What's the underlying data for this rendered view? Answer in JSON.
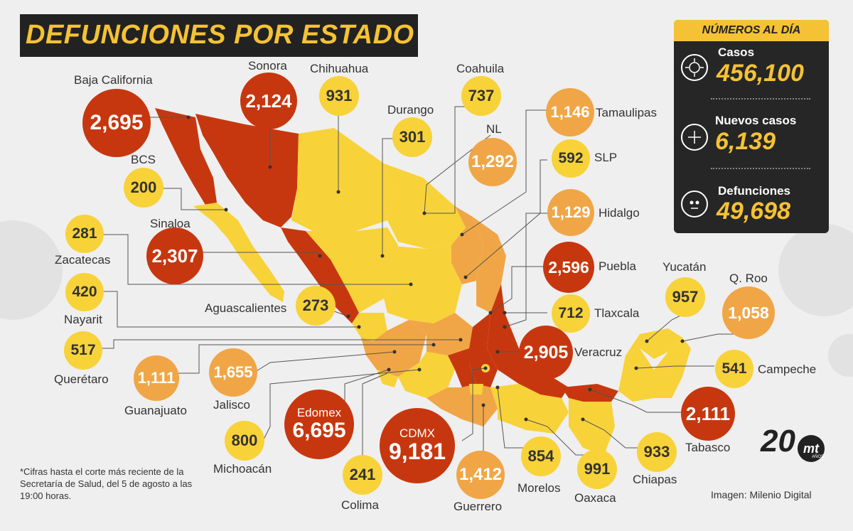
{
  "title": "DEFUNCIONES POR ESTADO",
  "panel": {
    "header": "NÚMEROS AL DÍA",
    "stats": [
      {
        "label": "Casos",
        "value": "456,100",
        "icon": "virus-icon"
      },
      {
        "label": "Nuevos casos",
        "value": "6,139",
        "icon": "plus-icon"
      },
      {
        "label": "Defunciones",
        "value": "49,698",
        "icon": "skull-icon"
      }
    ]
  },
  "states": [
    {
      "name": "Baja California",
      "value": "2,695",
      "level": "dark"
    },
    {
      "name": "Sonora",
      "value": "2,124",
      "level": "dark"
    },
    {
      "name": "Chihuahua",
      "value": "931",
      "level": "yellow"
    },
    {
      "name": "Durango",
      "value": "301",
      "level": "yellow"
    },
    {
      "name": "Coahuila",
      "value": "737",
      "level": "yellow"
    },
    {
      "name": "NL",
      "value": "1,292",
      "level": "mid"
    },
    {
      "name": "Tamaulipas",
      "value": "1,146",
      "level": "mid"
    },
    {
      "name": "SLP",
      "value": "592",
      "level": "yellow"
    },
    {
      "name": "Hidalgo",
      "value": "1,129",
      "level": "mid"
    },
    {
      "name": "BCS",
      "value": "200",
      "level": "yellow"
    },
    {
      "name": "Sinaloa",
      "value": "2,307",
      "level": "dark"
    },
    {
      "name": "Zacatecas",
      "value": "281",
      "level": "yellow"
    },
    {
      "name": "Nayarit",
      "value": "420",
      "level": "yellow"
    },
    {
      "name": "Aguascalientes",
      "value": "273",
      "level": "yellow"
    },
    {
      "name": "Querétaro",
      "value": "517",
      "level": "yellow"
    },
    {
      "name": "Guanajuato",
      "value": "1,111",
      "level": "mid"
    },
    {
      "name": "Jalisco",
      "value": "1,655",
      "level": "mid"
    },
    {
      "name": "Michoacán",
      "value": "800",
      "level": "yellow"
    },
    {
      "name": "Edomex",
      "value": "6,695",
      "level": "dark"
    },
    {
      "name": "Colima",
      "value": "241",
      "level": "yellow"
    },
    {
      "name": "CDMX",
      "value": "9,181",
      "level": "dark"
    },
    {
      "name": "Guerrero",
      "value": "1,412",
      "level": "mid"
    },
    {
      "name": "Morelos",
      "value": "854",
      "level": "yellow"
    },
    {
      "name": "Oaxaca",
      "value": "991",
      "level": "yellow"
    },
    {
      "name": "Chiapas",
      "value": "933",
      "level": "yellow"
    },
    {
      "name": "Tabasco",
      "value": "2,111",
      "level": "dark"
    },
    {
      "name": "Campeche",
      "value": "541",
      "level": "yellow"
    },
    {
      "name": "Yucatán",
      "value": "957",
      "level": "yellow"
    },
    {
      "name": "Q. Roo",
      "value": "1,058",
      "level": "mid"
    },
    {
      "name": "Puebla",
      "value": "2,596",
      "level": "dark"
    },
    {
      "name": "Tlaxcala",
      "value": "712",
      "level": "yellow"
    },
    {
      "name": "Veracruz",
      "value": "2,905",
      "level": "dark"
    }
  ],
  "footnote": "*Cifras hasta el corte más reciente de la Secretaría de Salud, del 5 de agosto a las 19:00 horas.",
  "credit": "Imagen: Milenio Digital",
  "logo": {
    "number": "20",
    "mark": "mt",
    "sub": "AÑOS"
  },
  "colors": {
    "dark": "#c7370f",
    "mid": "#f0a646",
    "yellow": "#f8d239",
    "accent": "#f5c235"
  }
}
